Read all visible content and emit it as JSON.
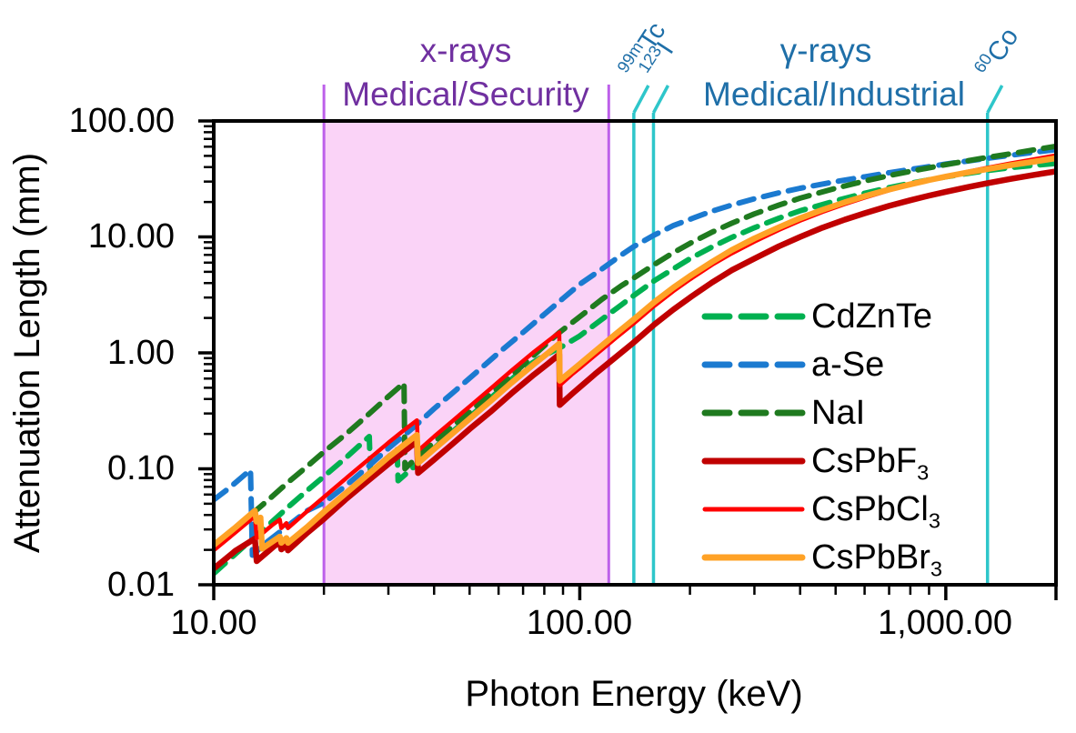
{
  "chart_data": {
    "type": "line",
    "title": "",
    "xlabel": "Photon Energy (keV)",
    "ylabel": "Attenuation Length (mm)",
    "x_scale": "log",
    "y_scale": "log",
    "xlim": [
      10,
      2000
    ],
    "ylim": [
      0.01,
      100
    ],
    "grid": false,
    "legend_position": "inside-right",
    "x_ticks": [
      {
        "value": 10,
        "label": "10.00"
      },
      {
        "value": 100,
        "label": "100.00"
      },
      {
        "value": 1000,
        "label": "1,000.00"
      }
    ],
    "y_ticks": [
      {
        "value": 100,
        "label": "100.00"
      },
      {
        "value": 10,
        "label": "10.00"
      },
      {
        "value": 1,
        "label": "1.00"
      },
      {
        "value": 0.1,
        "label": "0.10"
      },
      {
        "value": 0.01,
        "label": "0.01"
      }
    ],
    "regions": [
      {
        "name": "x-ray-band",
        "from_kev": 20,
        "to_kev": 120,
        "fill": "#FAD3F7",
        "border": "#BD60EA",
        "label_line1": "x-rays",
        "label_line2": "Medical/Security",
        "text_color": "#7030A0"
      }
    ],
    "gamma_annotation": {
      "label_line1": "γ-rays",
      "label_line2": "Medical/Industrial",
      "text_color": "#1F6FA8"
    },
    "ref_lines": [
      {
        "sup": "99m",
        "base": "Tc",
        "kev": 140.5,
        "color": "#2EC6CA"
      },
      {
        "sup": "123",
        "base": "I",
        "kev": 159,
        "color": "#2EC6CA"
      },
      {
        "sup": "60",
        "base": "Co",
        "kev": 1300,
        "color": "#2EC6CA"
      }
    ],
    "series": [
      {
        "name": "CdZnTe",
        "legend_base": "CdZnTe",
        "legend_sub": "",
        "color": "#00B050",
        "dash": true,
        "width": 6,
        "points": [
          [
            10,
            0.0125
          ],
          [
            12,
            0.021
          ],
          [
            14,
            0.032
          ],
          [
            16,
            0.047
          ],
          [
            18,
            0.065
          ],
          [
            20,
            0.086
          ],
          [
            23,
            0.125
          ],
          [
            26.6,
            0.19
          ],
          [
            26.8,
            0.092
          ],
          [
            29,
            0.115
          ],
          [
            31.7,
            0.148
          ],
          [
            31.9,
            0.079
          ],
          [
            35,
            0.102
          ],
          [
            40,
            0.15
          ],
          [
            45,
            0.21
          ],
          [
            50,
            0.28
          ],
          [
            56,
            0.385
          ],
          [
            63,
            0.54
          ],
          [
            71,
            0.75
          ],
          [
            80,
            0.95
          ],
          [
            88,
            1.1
          ],
          [
            100,
            1.4
          ],
          [
            115,
            1.95
          ],
          [
            130,
            2.6
          ],
          [
            140,
            3.1
          ],
          [
            160,
            4.2
          ],
          [
            180,
            5.3
          ],
          [
            200,
            6.5
          ],
          [
            230,
            8.2
          ],
          [
            260,
            9.9
          ],
          [
            300,
            12
          ],
          [
            350,
            14.5
          ],
          [
            400,
            16.8
          ],
          [
            500,
            20.5
          ],
          [
            600,
            23.8
          ],
          [
            700,
            26.6
          ],
          [
            800,
            29
          ],
          [
            1000,
            33
          ],
          [
            1250,
            36.8
          ],
          [
            1500,
            39.5
          ],
          [
            1750,
            41.5
          ],
          [
            2000,
            43
          ]
        ]
      },
      {
        "name": "a-Se",
        "legend_base": "a-Se",
        "legend_sub": "",
        "color": "#1B7AD0",
        "dash": true,
        "width": 6,
        "points": [
          [
            10,
            0.054
          ],
          [
            11,
            0.068
          ],
          [
            12,
            0.086
          ],
          [
            12.6,
            0.098
          ],
          [
            12.75,
            0.018
          ],
          [
            14,
            0.0235
          ],
          [
            16,
            0.0325
          ],
          [
            18,
            0.0435
          ],
          [
            20,
            0.051
          ],
          [
            23,
            0.072
          ],
          [
            26,
            0.1
          ],
          [
            30,
            0.15
          ],
          [
            35,
            0.225
          ],
          [
            40,
            0.33
          ],
          [
            46,
            0.48
          ],
          [
            53,
            0.71
          ],
          [
            60,
            1.0
          ],
          [
            70,
            1.5
          ],
          [
            80,
            2.15
          ],
          [
            90,
            2.95
          ],
          [
            100,
            3.9
          ],
          [
            115,
            5.3
          ],
          [
            130,
            7.0
          ],
          [
            140,
            8.2
          ],
          [
            160,
            10.4
          ],
          [
            180,
            12.5
          ],
          [
            200,
            14.2
          ],
          [
            230,
            16.7
          ],
          [
            260,
            18.8
          ],
          [
            300,
            21.3
          ],
          [
            350,
            24
          ],
          [
            400,
            26.3
          ],
          [
            500,
            30
          ],
          [
            600,
            33
          ],
          [
            700,
            35.8
          ],
          [
            800,
            38.2
          ],
          [
            1000,
            42.5
          ],
          [
            1250,
            46.8
          ],
          [
            1500,
            50.5
          ],
          [
            1750,
            53.8
          ],
          [
            2000,
            56.5
          ]
        ]
      },
      {
        "name": "NaI",
        "legend_base": "NaI",
        "legend_sub": "",
        "color": "#1F7A1F",
        "dash": true,
        "width": 6,
        "points": [
          [
            10,
            0.021
          ],
          [
            12,
            0.035
          ],
          [
            14,
            0.053
          ],
          [
            16,
            0.077
          ],
          [
            18,
            0.105
          ],
          [
            20,
            0.14
          ],
          [
            23,
            0.2
          ],
          [
            26,
            0.28
          ],
          [
            30,
            0.42
          ],
          [
            33.1,
            0.55
          ],
          [
            33.3,
            0.1
          ],
          [
            36,
            0.127
          ],
          [
            40,
            0.17
          ],
          [
            45,
            0.235
          ],
          [
            50,
            0.31
          ],
          [
            56,
            0.42
          ],
          [
            63,
            0.58
          ],
          [
            71,
            0.82
          ],
          [
            80,
            1.15
          ],
          [
            88,
            1.5
          ],
          [
            100,
            2.05
          ],
          [
            115,
            2.9
          ],
          [
            130,
            3.8
          ],
          [
            140,
            4.4
          ],
          [
            160,
            5.8
          ],
          [
            180,
            7.3
          ],
          [
            200,
            8.8
          ],
          [
            230,
            11
          ],
          [
            260,
            13.1
          ],
          [
            300,
            15.8
          ],
          [
            350,
            18.8
          ],
          [
            400,
            21.6
          ],
          [
            500,
            26.3
          ],
          [
            600,
            30.3
          ],
          [
            700,
            33.8
          ],
          [
            800,
            36.8
          ],
          [
            1000,
            42
          ],
          [
            1250,
            47.5
          ],
          [
            1500,
            52
          ],
          [
            1750,
            56.5
          ],
          [
            2000,
            60.5
          ]
        ]
      },
      {
        "name": "CsPbF3",
        "legend_base": "CsPbF",
        "legend_sub": "3",
        "color": "#C00000",
        "dash": false,
        "width": 6.5,
        "points": [
          [
            10,
            0.0138
          ],
          [
            11.5,
            0.0198
          ],
          [
            12.95,
            0.025
          ],
          [
            13.1,
            0.016
          ],
          [
            14.5,
            0.021
          ],
          [
            15.15,
            0.0235
          ],
          [
            15.3,
            0.0202
          ],
          [
            15.8,
            0.022
          ],
          [
            15.95,
            0.0198
          ],
          [
            18,
            0.028
          ],
          [
            20,
            0.037
          ],
          [
            23,
            0.055
          ],
          [
            26,
            0.076
          ],
          [
            30,
            0.11
          ],
          [
            33,
            0.14
          ],
          [
            35.9,
            0.172
          ],
          [
            36.15,
            0.092
          ],
          [
            40,
            0.12
          ],
          [
            45,
            0.165
          ],
          [
            50,
            0.22
          ],
          [
            57,
            0.31
          ],
          [
            65,
            0.445
          ],
          [
            75,
            0.65
          ],
          [
            82,
            0.81
          ],
          [
            87.9,
            0.97
          ],
          [
            88.15,
            0.355
          ],
          [
            95,
            0.44
          ],
          [
            100,
            0.505
          ],
          [
            110,
            0.655
          ],
          [
            125,
            0.91
          ],
          [
            140,
            1.22
          ],
          [
            160,
            1.76
          ],
          [
            180,
            2.36
          ],
          [
            200,
            3.0
          ],
          [
            230,
            4.05
          ],
          [
            260,
            5.15
          ],
          [
            300,
            6.5
          ],
          [
            350,
            8.3
          ],
          [
            400,
            10
          ],
          [
            460,
            12
          ],
          [
            530,
            14.1
          ],
          [
            600,
            16
          ],
          [
            700,
            18.5
          ],
          [
            800,
            20.7
          ],
          [
            900,
            22.7
          ],
          [
            1000,
            24.5
          ],
          [
            1150,
            26.9
          ],
          [
            1300,
            29.1
          ],
          [
            1500,
            31.6
          ],
          [
            1750,
            34.3
          ],
          [
            2000,
            36.8
          ]
        ]
      },
      {
        "name": "CsPbCl3",
        "legend_base": "CsPbCl",
        "legend_sub": "3",
        "color": "#FF0000",
        "dash": false,
        "width": 4.5,
        "points": [
          [
            10,
            0.0198
          ],
          [
            11.5,
            0.0285
          ],
          [
            12.95,
            0.039
          ],
          [
            13.1,
            0.0252
          ],
          [
            14.5,
            0.033
          ],
          [
            15.15,
            0.0365
          ],
          [
            15.3,
            0.0308
          ],
          [
            15.8,
            0.034
          ],
          [
            15.95,
            0.0308
          ],
          [
            18,
            0.043
          ],
          [
            20,
            0.057
          ],
          [
            23,
            0.083
          ],
          [
            26,
            0.115
          ],
          [
            30,
            0.168
          ],
          [
            33,
            0.214
          ],
          [
            35.9,
            0.262
          ],
          [
            36.15,
            0.143
          ],
          [
            40,
            0.19
          ],
          [
            45,
            0.26
          ],
          [
            50,
            0.345
          ],
          [
            57,
            0.49
          ],
          [
            65,
            0.7
          ],
          [
            75,
            1.02
          ],
          [
            82,
            1.27
          ],
          [
            87.9,
            1.5
          ],
          [
            88.15,
            0.525
          ],
          [
            95,
            0.65
          ],
          [
            100,
            0.74
          ],
          [
            110,
            0.95
          ],
          [
            125,
            1.33
          ],
          [
            140,
            1.78
          ],
          [
            160,
            2.55
          ],
          [
            180,
            3.4
          ],
          [
            200,
            4.3
          ],
          [
            230,
            5.75
          ],
          [
            260,
            7.2
          ],
          [
            300,
            9.1
          ],
          [
            350,
            11.5
          ],
          [
            400,
            13.8
          ],
          [
            460,
            16.4
          ],
          [
            530,
            19.2
          ],
          [
            600,
            21.8
          ],
          [
            700,
            25.2
          ],
          [
            800,
            28.2
          ],
          [
            900,
            30.9
          ],
          [
            1000,
            33.3
          ],
          [
            1150,
            36.6
          ],
          [
            1300,
            39.5
          ],
          [
            1500,
            43
          ],
          [
            1750,
            46.8
          ],
          [
            2000,
            50.5
          ]
        ]
      },
      {
        "name": "CsPbBr3",
        "legend_base": "CsPbBr",
        "legend_sub": "3",
        "color": "#FFA226",
        "dash": false,
        "width": 6.5,
        "points": [
          [
            10,
            0.022
          ],
          [
            11.5,
            0.0315
          ],
          [
            12.95,
            0.0435
          ],
          [
            13.1,
            0.035
          ],
          [
            13.42,
            0.038
          ],
          [
            13.55,
            0.0205
          ],
          [
            15.15,
            0.026
          ],
          [
            15.3,
            0.023
          ],
          [
            15.8,
            0.0253
          ],
          [
            15.95,
            0.023
          ],
          [
            18,
            0.0315
          ],
          [
            20,
            0.0425
          ],
          [
            23,
            0.062
          ],
          [
            26,
            0.086
          ],
          [
            30,
            0.126
          ],
          [
            33,
            0.16
          ],
          [
            35.9,
            0.196
          ],
          [
            36.15,
            0.112
          ],
          [
            40,
            0.148
          ],
          [
            45,
            0.203
          ],
          [
            50,
            0.27
          ],
          [
            57,
            0.383
          ],
          [
            65,
            0.55
          ],
          [
            75,
            0.8
          ],
          [
            82,
            1.0
          ],
          [
            87.9,
            1.2
          ],
          [
            88.15,
            0.575
          ],
          [
            95,
            0.7
          ],
          [
            100,
            0.8
          ],
          [
            110,
            1.03
          ],
          [
            125,
            1.44
          ],
          [
            140,
            1.93
          ],
          [
            160,
            2.75
          ],
          [
            180,
            3.65
          ],
          [
            200,
            4.6
          ],
          [
            230,
            6.1
          ],
          [
            260,
            7.7
          ],
          [
            300,
            9.7
          ],
          [
            350,
            12.1
          ],
          [
            400,
            14.5
          ],
          [
            460,
            17.1
          ],
          [
            530,
            19.9
          ],
          [
            600,
            22.4
          ],
          [
            700,
            25.6
          ],
          [
            800,
            28.4
          ],
          [
            900,
            30.9
          ],
          [
            1000,
            33.1
          ],
          [
            1150,
            36
          ],
          [
            1300,
            38.5
          ],
          [
            1500,
            41.5
          ],
          [
            1750,
            44.7
          ],
          [
            2000,
            47.7
          ]
        ]
      }
    ]
  }
}
